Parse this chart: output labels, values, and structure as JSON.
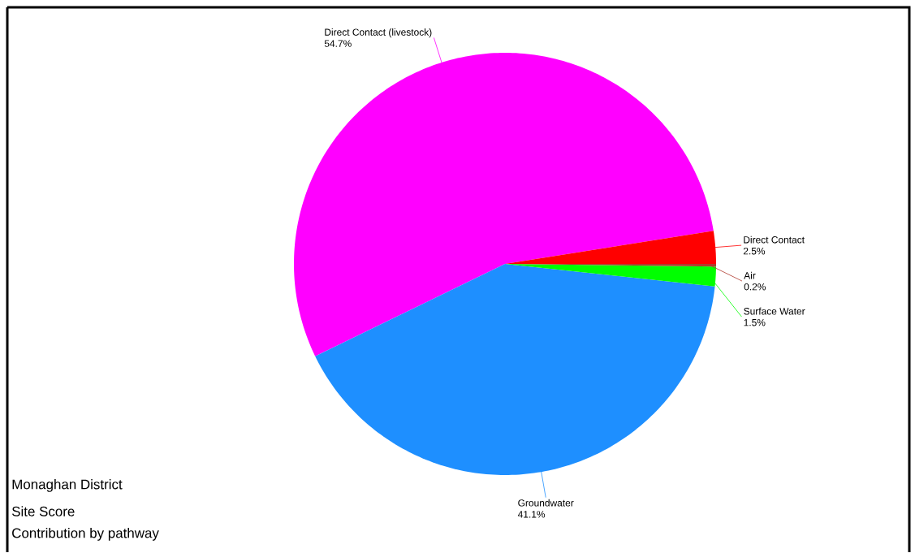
{
  "chart_data": {
    "type": "pie",
    "categories": [
      "Direct Contact (livestock)",
      "Groundwater",
      "Surface Water",
      "Air",
      "Direct Contact"
    ],
    "values": [
      54.7,
      41.1,
      1.5,
      0.2,
      2.5
    ],
    "value_labels": [
      "54.7%",
      "41.1%",
      "1.5%",
      "0.2%",
      "2.5%"
    ],
    "colors": [
      "#ff00ff",
      "#1e8fff",
      "#00ff00",
      "#b03a2e",
      "#ff0000"
    ],
    "annotations": [
      "Monaghan District",
      "Site Score",
      "Contribution by pathway"
    ]
  }
}
